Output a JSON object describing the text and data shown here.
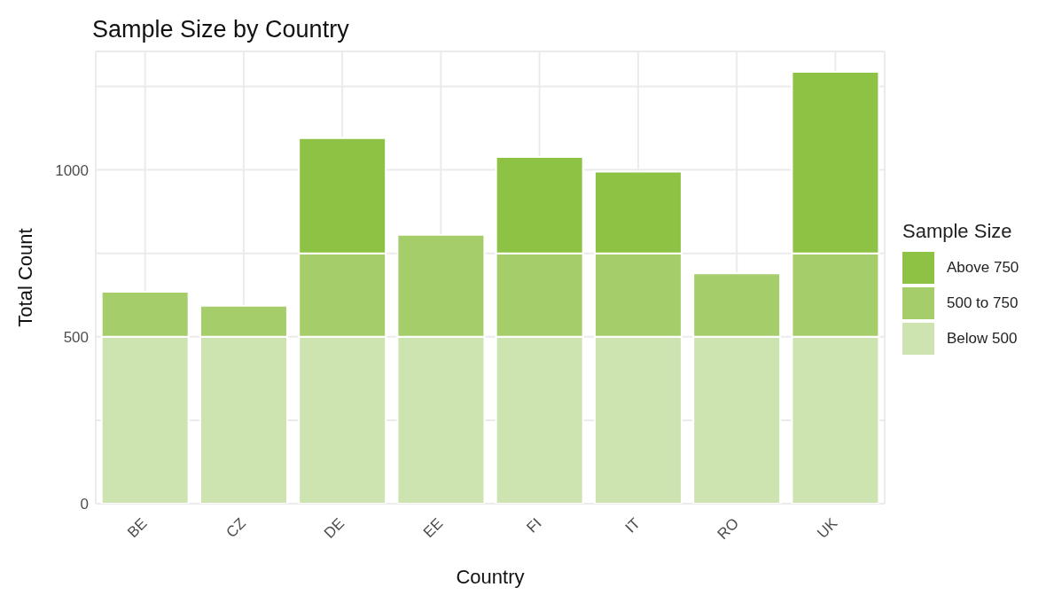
{
  "chart_data": {
    "type": "bar",
    "title": "Sample Size by Country",
    "xlabel": "Country",
    "ylabel": "Total Count",
    "legend_title": "Sample Size",
    "categories": [
      "BE",
      "CZ",
      "DE",
      "EE",
      "FI",
      "IT",
      "RO",
      "UK"
    ],
    "series": [
      {
        "name": "Below 500",
        "color": "#cde3b0",
        "values": [
          500,
          500,
          500,
          500,
          500,
          500,
          500,
          500
        ]
      },
      {
        "name": "500 to 750",
        "color": "#a5cd6a",
        "values": [
          135,
          93,
          250,
          306,
          250,
          250,
          190,
          250
        ]
      },
      {
        "name": "Above 750",
        "color": "#8dc244",
        "values": [
          null,
          null,
          345,
          null,
          289,
          245,
          null,
          544
        ]
      }
    ],
    "stacked": true,
    "ylim": [
      0,
      1355
    ],
    "yticks": [
      0,
      {
        "value": 250,
        "label": null
      },
      500,
      {
        "value": 750,
        "label": null
      },
      1000,
      {
        "value": 1250,
        "label": null
      }
    ],
    "grid": true,
    "legend": "right"
  }
}
